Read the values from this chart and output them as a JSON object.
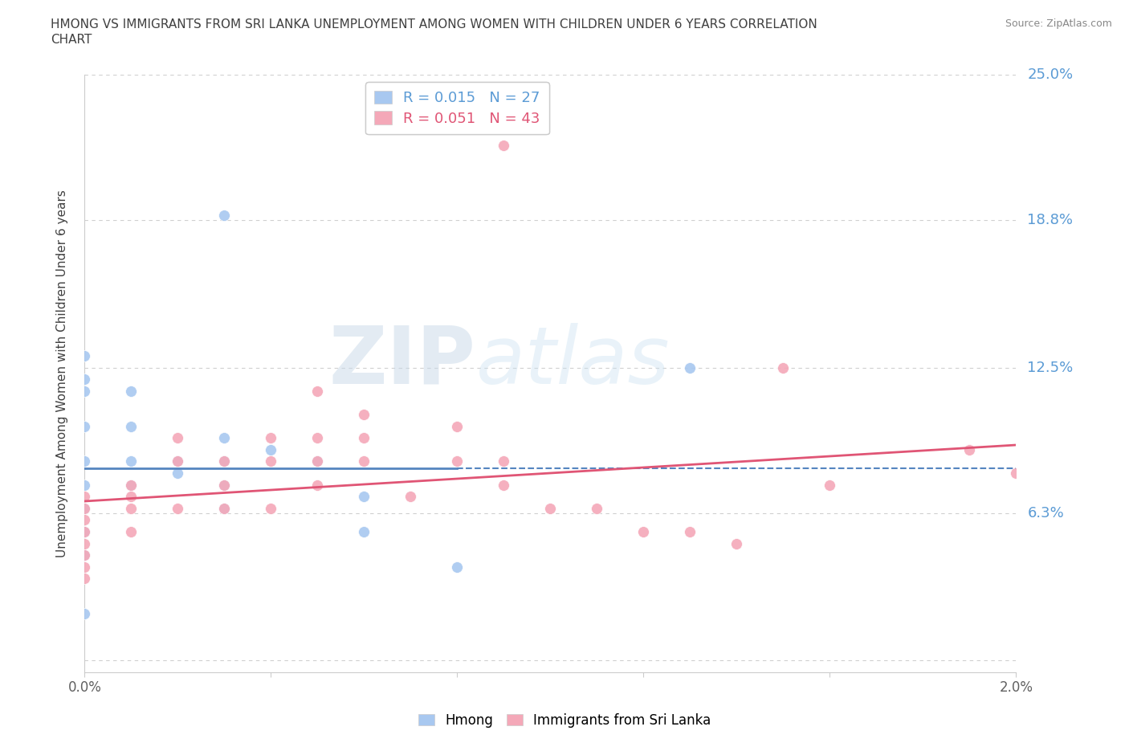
{
  "title_line1": "HMONG VS IMMIGRANTS FROM SRI LANKA UNEMPLOYMENT AMONG WOMEN WITH CHILDREN UNDER 6 YEARS CORRELATION",
  "title_line2": "CHART",
  "source": "Source: ZipAtlas.com",
  "ylabel": "Unemployment Among Women with Children Under 6 years",
  "xlim": [
    0.0,
    0.02
  ],
  "ylim": [
    -0.005,
    0.25
  ],
  "xticks": [
    0.0,
    0.004,
    0.008,
    0.012,
    0.016,
    0.02
  ],
  "xticklabels": [
    "0.0%",
    "",
    "",
    "",
    "",
    "2.0%"
  ],
  "yticks_right": [
    0.0,
    0.063,
    0.125,
    0.188,
    0.25
  ],
  "ytickslabels_right": [
    "",
    "6.3%",
    "12.5%",
    "18.8%",
    "25.0%"
  ],
  "hmong_color": "#a8c8f0",
  "srilanka_color": "#f4a8b8",
  "hmong_line_color": "#5585c0",
  "srilanka_line_color": "#e05575",
  "watermark_zip": "ZIP",
  "watermark_atlas": "atlas",
  "legend_r_hmong": "R = 0.015",
  "legend_n_hmong": "N = 27",
  "legend_r_srilanka": "R = 0.051",
  "legend_n_srilanka": "N = 43",
  "hmong_x": [
    0.0,
    0.0,
    0.0,
    0.0,
    0.0,
    0.0,
    0.0,
    0.0,
    0.0,
    0.0,
    0.001,
    0.001,
    0.001,
    0.001,
    0.002,
    0.002,
    0.003,
    0.003,
    0.003,
    0.003,
    0.004,
    0.005,
    0.006,
    0.006,
    0.008,
    0.013,
    0.003
  ],
  "hmong_y": [
    0.13,
    0.12,
    0.115,
    0.1,
    0.085,
    0.075,
    0.065,
    0.055,
    0.045,
    0.02,
    0.115,
    0.1,
    0.085,
    0.075,
    0.085,
    0.08,
    0.095,
    0.085,
    0.075,
    0.065,
    0.09,
    0.085,
    0.07,
    0.055,
    0.04,
    0.125,
    0.19
  ],
  "srilanka_x": [
    0.0,
    0.0,
    0.0,
    0.0,
    0.0,
    0.0,
    0.0,
    0.0,
    0.001,
    0.001,
    0.001,
    0.001,
    0.002,
    0.002,
    0.002,
    0.003,
    0.003,
    0.003,
    0.004,
    0.004,
    0.004,
    0.005,
    0.005,
    0.005,
    0.005,
    0.006,
    0.006,
    0.006,
    0.007,
    0.008,
    0.008,
    0.009,
    0.009,
    0.01,
    0.011,
    0.012,
    0.013,
    0.014,
    0.015,
    0.016,
    0.019,
    0.02,
    0.009
  ],
  "srilanka_y": [
    0.07,
    0.065,
    0.06,
    0.055,
    0.05,
    0.045,
    0.04,
    0.035,
    0.075,
    0.07,
    0.065,
    0.055,
    0.095,
    0.085,
    0.065,
    0.085,
    0.075,
    0.065,
    0.095,
    0.085,
    0.065,
    0.115,
    0.095,
    0.085,
    0.075,
    0.105,
    0.095,
    0.085,
    0.07,
    0.1,
    0.085,
    0.085,
    0.075,
    0.065,
    0.065,
    0.055,
    0.055,
    0.05,
    0.125,
    0.075,
    0.09,
    0.08,
    0.22
  ],
  "hmong_trend_x": [
    0.0,
    0.008,
    0.008,
    0.02
  ],
  "hmong_trend_y": [
    0.082,
    0.082,
    0.082,
    0.082
  ],
  "hmong_trend_style": [
    "solid",
    "solid",
    "dashed",
    "dashed"
  ],
  "srilanka_trend_x": [
    0.0,
    0.02
  ],
  "srilanka_trend_y": [
    0.068,
    0.092
  ],
  "bg_color": "#ffffff",
  "grid_color": "#d0d0d0",
  "right_label_color": "#5b9bd5",
  "title_color": "#404040",
  "axis_color": "#cccccc",
  "scatter_edgecolor": "#ffffff",
  "marker_size": 100
}
